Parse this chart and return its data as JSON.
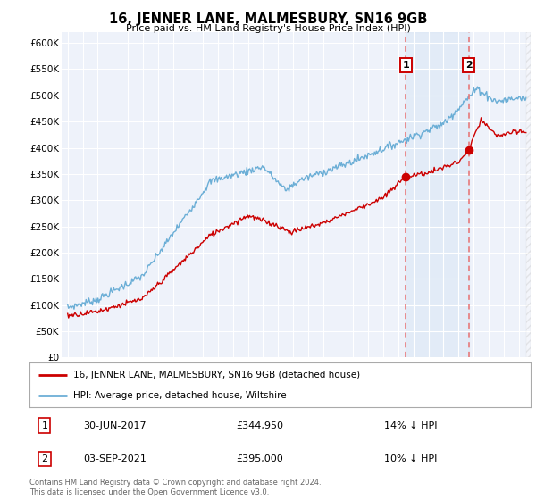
{
  "title": "16, JENNER LANE, MALMESBURY, SN16 9GB",
  "subtitle": "Price paid vs. HM Land Registry's House Price Index (HPI)",
  "footer": "Contains HM Land Registry data © Crown copyright and database right 2024.\nThis data is licensed under the Open Government Licence v3.0.",
  "legend_entry1": "16, JENNER LANE, MALMESBURY, SN16 9GB (detached house)",
  "legend_entry2": "HPI: Average price, detached house, Wiltshire",
  "annotation1_label": "1",
  "annotation1_date": "30-JUN-2017",
  "annotation1_price": "£344,950",
  "annotation1_hpi": "14% ↓ HPI",
  "annotation2_label": "2",
  "annotation2_date": "03-SEP-2021",
  "annotation2_price": "£395,000",
  "annotation2_hpi": "10% ↓ HPI",
  "sale1_year": 2017.5,
  "sale2_year": 2021.67,
  "sale1_price": 344950,
  "sale2_price": 395000,
  "ylim": [
    0,
    620000
  ],
  "yticks": [
    0,
    50000,
    100000,
    150000,
    200000,
    250000,
    300000,
    350000,
    400000,
    450000,
    500000,
    550000,
    600000
  ],
  "ytick_labels": [
    "£0",
    "£50K",
    "£100K",
    "£150K",
    "£200K",
    "£250K",
    "£300K",
    "£350K",
    "£400K",
    "£450K",
    "£500K",
    "£550K",
    "£600K"
  ],
  "xstart": 1995,
  "xend": 2025,
  "bg_color": "#ffffff",
  "plot_bg_color": "#eef2fa",
  "grid_color": "#ffffff",
  "line_color_hpi": "#6baed6",
  "line_color_price": "#cc0000",
  "marker_color": "#cc0000",
  "annotation_box_color": "#cc0000",
  "dashed_line_color": "#e87070",
  "highlight_bg": "#d9e6f5",
  "highlight_alpha": 0.55,
  "legend_border_color": "#aaaaaa",
  "footer_color": "#666666"
}
